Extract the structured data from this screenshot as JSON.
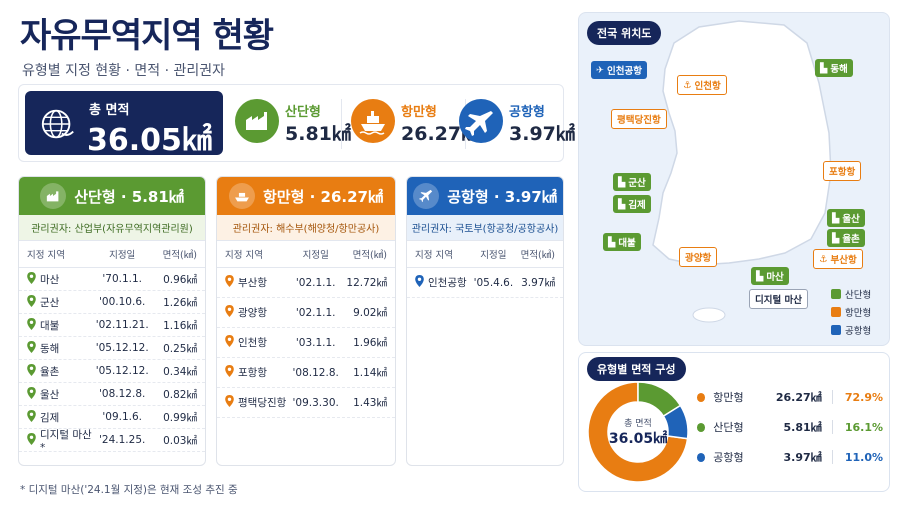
{
  "header": {
    "title": "자유무역지역 현황",
    "subtitle": "유형별 지정 현황 · 면적 · 관리권자"
  },
  "summary": {
    "total_label": "총 면적",
    "total_value": "36.05㎢",
    "items": [
      {
        "label": "산단형",
        "value": "5.81㎢",
        "color": "#5b9a32",
        "icon": "factory-icon"
      },
      {
        "label": "항만형",
        "value": "26.27㎢",
        "color": "#e87d12",
        "icon": "ship-icon"
      },
      {
        "label": "공항형",
        "value": "3.97㎢",
        "color": "#1f63b8",
        "icon": "airplane-icon"
      }
    ]
  },
  "table_headers": {
    "region": "지정 지역",
    "date": "지정일",
    "area": "면적(㎢)"
  },
  "cards": {
    "industrial": {
      "title": "산단형 · 5.81㎢",
      "manager": "관리권자: 산업부(자유무역지역관리원)",
      "color": "#5b9a32",
      "rows": [
        {
          "name": "마산",
          "date": "'70.1.1.",
          "area": "0.96㎢"
        },
        {
          "name": "군산",
          "date": "'00.10.6.",
          "area": "1.26㎢"
        },
        {
          "name": "대불",
          "date": "'02.11.21.",
          "area": "1.16㎢"
        },
        {
          "name": "동해",
          "date": "'05.12.12.",
          "area": "0.25㎢"
        },
        {
          "name": "율촌",
          "date": "'05.12.12.",
          "area": "0.34㎢"
        },
        {
          "name": "울산",
          "date": "'08.12.8.",
          "area": "0.82㎢"
        },
        {
          "name": "김제",
          "date": "'09.1.6.",
          "area": "0.99㎢"
        },
        {
          "name": "디지털 마산*",
          "date": "'24.1.25.",
          "area": "0.03㎢"
        }
      ]
    },
    "port": {
      "title": "항만형 · 26.27㎢",
      "manager": "관리권자: 해수부(해양청/항만공사)",
      "color": "#e87d12",
      "rows": [
        {
          "name": "부산항",
          "date": "'02.1.1.",
          "area": "12.72㎢"
        },
        {
          "name": "광양항",
          "date": "'02.1.1.",
          "area": "9.02㎢"
        },
        {
          "name": "인천항",
          "date": "'03.1.1.",
          "area": "1.96㎢"
        },
        {
          "name": "포항항",
          "date": "'08.12.8.",
          "area": "1.14㎢"
        },
        {
          "name": "평택당진항",
          "date": "'09.3.30.",
          "area": "1.43㎢"
        }
      ]
    },
    "airport": {
      "title": "공항형 · 3.97㎢",
      "manager": "관리권자: 국토부(항공청/공항공사)",
      "color": "#1f63b8",
      "rows": [
        {
          "name": "인천공항",
          "date": "'05.4.6.",
          "area": "3.97㎢"
        }
      ]
    }
  },
  "note": "* 디지털 마산('24.1월 지정)은 현재 조성 추진 중",
  "map": {
    "title": "전국 위치도",
    "legend": [
      "산단형",
      "항만형",
      "공항형"
    ],
    "labels": {
      "incheon_airport": "인천공항",
      "incheon_port": "인천항",
      "donghae": "동해",
      "pyeongtaek": "평택당진항",
      "pohang": "포항항",
      "gunsan": "군산",
      "gimje": "김제",
      "ulsan": "울산",
      "yulchon": "율촌",
      "daebul": "대불",
      "gwangyang": "광양항",
      "busan": "부산항",
      "masan": "마산",
      "digital_masan": "디지털 마산"
    }
  },
  "donut": {
    "title": "유형별 면적 구성",
    "center_label": "총 면적",
    "center_value": "36.05㎢",
    "rows": [
      {
        "name": "항만형",
        "area": "26.27㎢",
        "pct": "72.9%",
        "color": "#e87d12"
      },
      {
        "name": "산단형",
        "area": "5.81㎢",
        "pct": "16.1%",
        "color": "#5b9a32"
      },
      {
        "name": "공항형",
        "area": "3.97㎢",
        "pct": "11.0%",
        "color": "#1f63b8"
      }
    ]
  },
  "chart_data": {
    "type": "pie",
    "title": "유형별 면적 구성",
    "categories": [
      "항만형",
      "산단형",
      "공항형"
    ],
    "values": [
      26.27,
      5.81,
      3.97
    ],
    "percent": [
      72.9,
      16.1,
      11.0
    ],
    "colors": [
      "#e87d12",
      "#5b9a32",
      "#1f63b8"
    ],
    "total": 36.05
  }
}
